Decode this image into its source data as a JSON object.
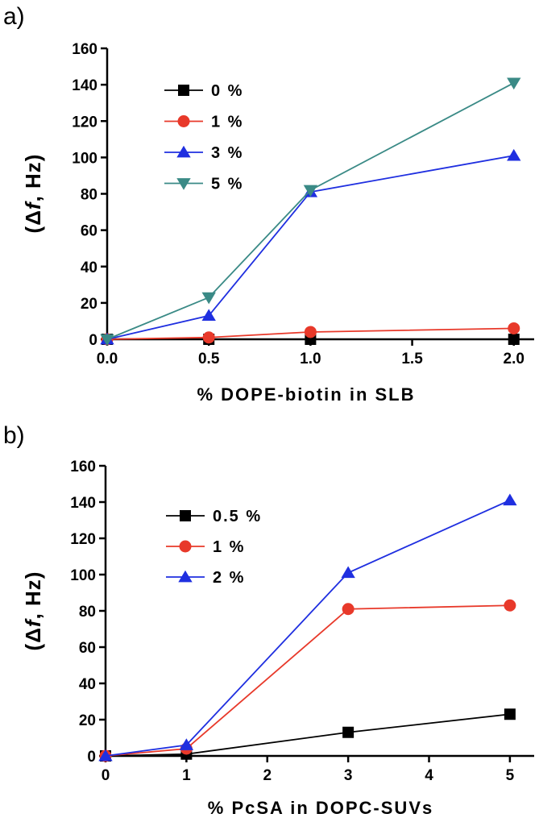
{
  "panels": [
    {
      "label": "a)",
      "ylabel_pre": "(Δ",
      "ylabel_var": "f",
      "ylabel_post": ", Hz)"
    },
    {
      "label": "b)",
      "ylabel_pre": "(Δ",
      "ylabel_var": "f",
      "ylabel_post": ", Hz)"
    }
  ],
  "chart_data": [
    {
      "type": "line",
      "title": "",
      "xlabel": "% DOPE-biotin in SLB",
      "ylabel": "(Δf, Hz)",
      "xlim": [
        0,
        2.1
      ],
      "ylim": [
        0,
        160
      ],
      "x_ticks": [
        0.0,
        0.5,
        1.0,
        1.5,
        2.0
      ],
      "x_tick_labels": [
        "0.0",
        "0.5",
        "1.0",
        "1.5",
        "2.0"
      ],
      "y_ticks": [
        0,
        20,
        40,
        60,
        80,
        100,
        120,
        140,
        160
      ],
      "y_tick_labels": [
        "0",
        "20",
        "40",
        "60",
        "80",
        "100",
        "120",
        "140",
        "160"
      ],
      "x": [
        0,
        0.5,
        1.0,
        2.0
      ],
      "legend_position": "top-left",
      "series": [
        {
          "name": "0 %",
          "values": [
            0,
            0,
            0,
            0
          ],
          "color": "#000000",
          "marker": "square"
        },
        {
          "name": "1 %",
          "values": [
            0,
            1,
            4,
            6
          ],
          "color": "#e8392a",
          "marker": "circle"
        },
        {
          "name": "3 %",
          "values": [
            0,
            13,
            81,
            101
          ],
          "color": "#1f2fe0",
          "marker": "triangle-up"
        },
        {
          "name": "5 %",
          "values": [
            0,
            23,
            82,
            141
          ],
          "color": "#3a8a86",
          "marker": "triangle-down"
        }
      ]
    },
    {
      "type": "line",
      "title": "",
      "xlabel": "% PcSA in DOPC-SUVs",
      "ylabel": "(Δf, Hz)",
      "xlim": [
        0,
        5.3
      ],
      "ylim": [
        0,
        160
      ],
      "x_ticks": [
        0,
        1,
        2,
        3,
        4,
        5
      ],
      "x_tick_labels": [
        "0",
        "1",
        "2",
        "3",
        "4",
        "5"
      ],
      "y_ticks": [
        0,
        20,
        40,
        60,
        80,
        100,
        120,
        140,
        160
      ],
      "y_tick_labels": [
        "0",
        "20",
        "40",
        "60",
        "80",
        "100",
        "120",
        "140",
        "160"
      ],
      "x": [
        0,
        1,
        3,
        5
      ],
      "legend_position": "top-left",
      "series": [
        {
          "name": "0.5 %",
          "values": [
            0,
            1,
            13,
            23
          ],
          "color": "#000000",
          "marker": "square"
        },
        {
          "name": "1 %",
          "values": [
            0,
            4,
            81,
            83
          ],
          "color": "#e8392a",
          "marker": "circle"
        },
        {
          "name": "2 %",
          "values": [
            0,
            6,
            101,
            141
          ],
          "color": "#1f2fe0",
          "marker": "triangle-up"
        }
      ]
    }
  ]
}
